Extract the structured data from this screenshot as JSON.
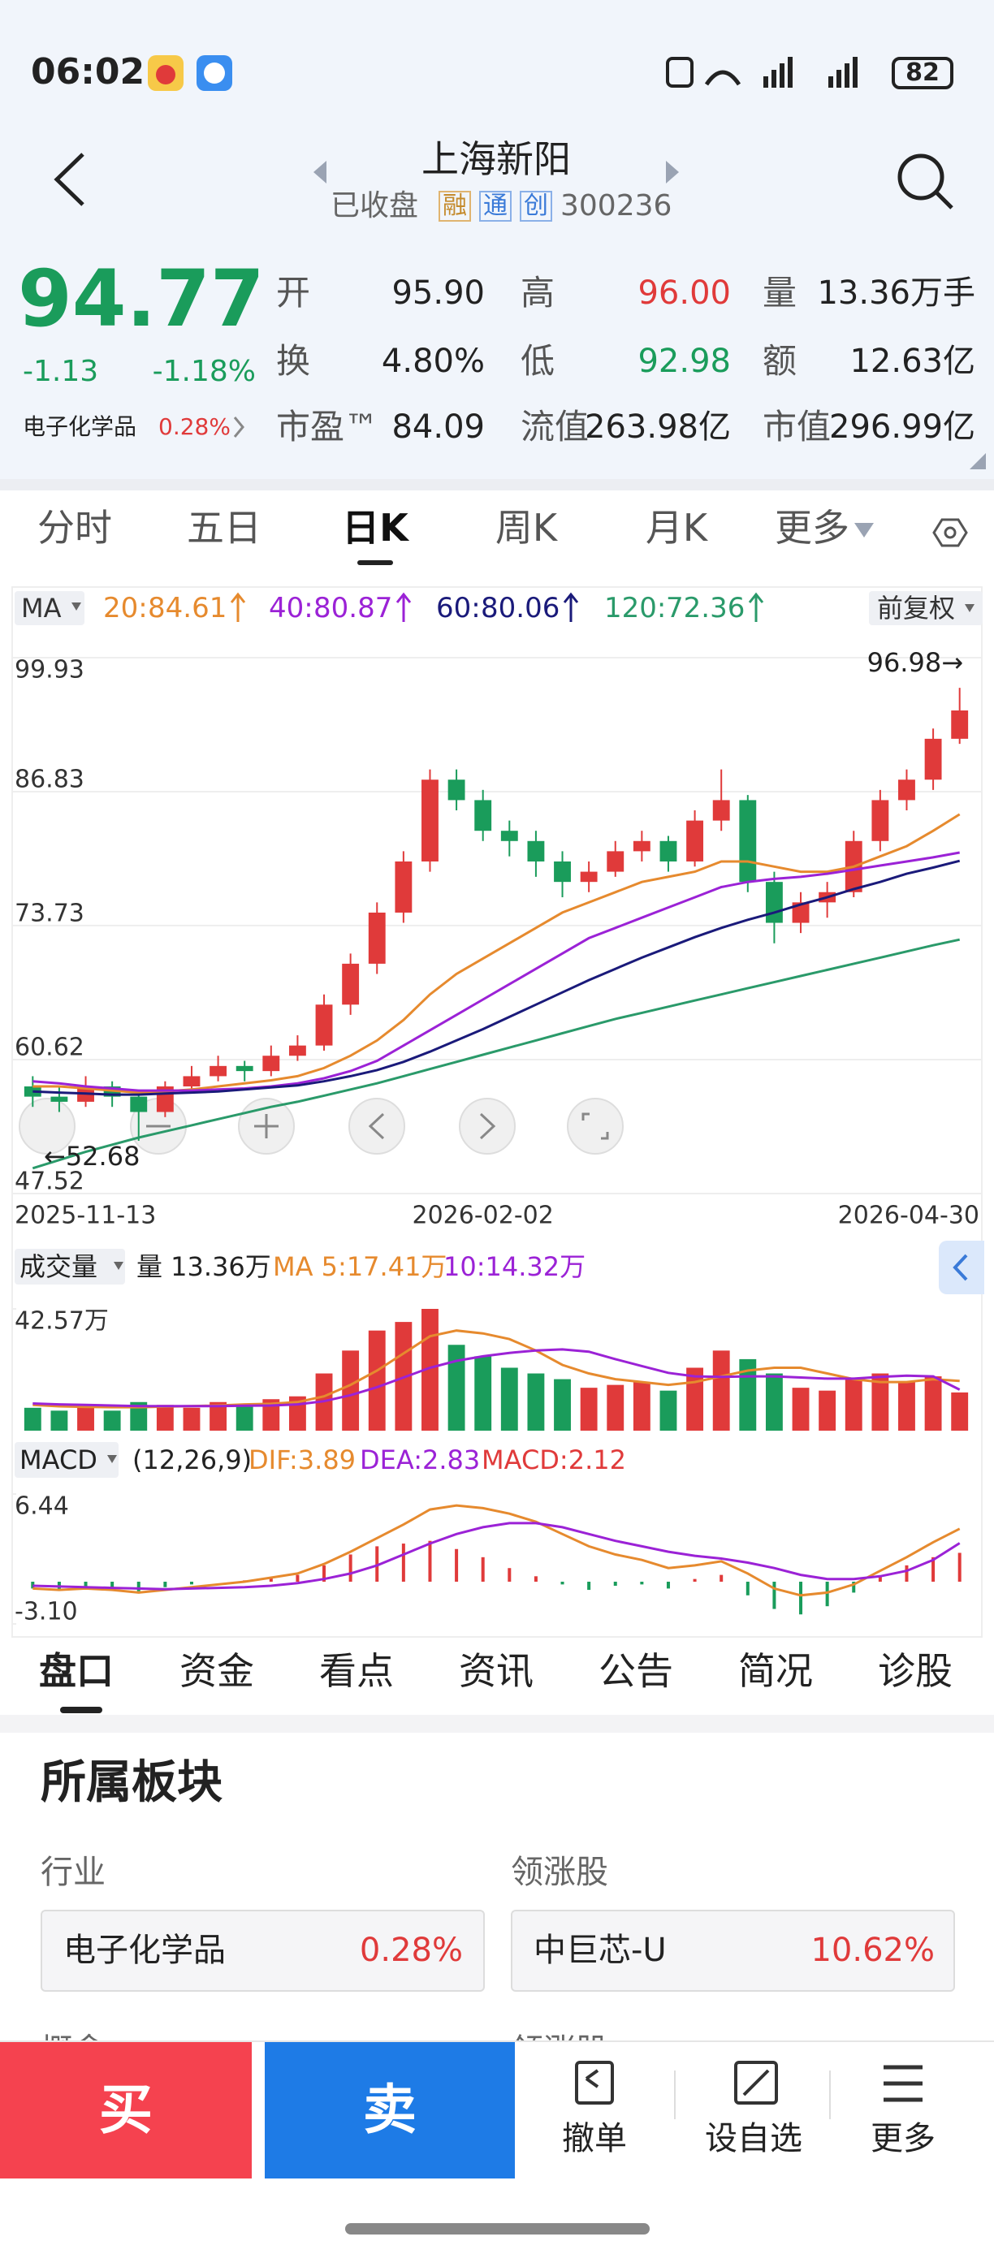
{
  "status": {
    "time": "06:02",
    "battery": "82"
  },
  "header": {
    "title": "上海新阳",
    "status": "已收盘",
    "tags": [
      "融",
      "通",
      "创"
    ],
    "code": "300236"
  },
  "quote": {
    "price": "94.77",
    "change": "-1.13",
    "change_pct": "-1.18%",
    "sector": "电子化学品",
    "sector_pct": "0.28%",
    "stats": [
      {
        "label": "开",
        "value": "95.90",
        "color": "#222"
      },
      {
        "label": "高",
        "value": "96.00",
        "color": "#e03a3a"
      },
      {
        "label": "量",
        "value": "13.36万手",
        "color": "#222"
      },
      {
        "label": "换",
        "value": "4.80%",
        "color": "#222"
      },
      {
        "label": "低",
        "value": "92.98",
        "color": "#1a9c5b"
      },
      {
        "label": "额",
        "value": "12.63亿",
        "color": "#222"
      },
      {
        "label": "市盈™",
        "value": "84.09",
        "color": "#222"
      },
      {
        "label": "流值",
        "value": "263.98亿",
        "color": "#222"
      },
      {
        "label": "市值",
        "value": "296.99亿",
        "color": "#222"
      }
    ]
  },
  "chart_tabs": [
    "分时",
    "五日",
    "日K",
    "周K",
    "月K",
    "更多"
  ],
  "indicator": "MA",
  "adjust": "前复权",
  "chart_data": [
    {
      "type": "candlestick",
      "up_color": "#e03a3a",
      "down_color": "#1a9c5b",
      "categories": [
        "2025-11-13",
        null,
        null,
        null,
        null,
        null,
        null,
        null,
        null,
        null,
        null,
        null,
        null,
        null,
        null,
        null,
        null,
        "2026-02-02",
        null,
        null,
        null,
        null,
        null,
        null,
        null,
        null,
        null,
        null,
        null,
        null,
        null,
        null,
        null,
        null,
        null,
        "2026-04-30"
      ],
      "candles": [
        [
          58,
          59,
          56,
          57
        ],
        [
          57,
          58,
          55.5,
          56.5
        ],
        [
          56.5,
          59,
          56,
          58
        ],
        [
          58,
          58.5,
          56,
          57
        ],
        [
          57,
          57.5,
          52.68,
          55.5
        ],
        [
          55.5,
          58.5,
          55,
          58
        ],
        [
          58,
          60,
          57.5,
          59
        ],
        [
          59,
          61,
          58.5,
          60
        ],
        [
          60,
          60.5,
          58.5,
          59.5
        ],
        [
          59.5,
          62,
          59,
          61
        ],
        [
          61,
          63,
          60.5,
          62
        ],
        [
          62,
          67,
          61.5,
          66
        ],
        [
          66,
          71,
          65,
          70
        ],
        [
          70,
          76,
          69,
          75
        ],
        [
          75,
          81,
          74,
          80
        ],
        [
          80,
          89,
          79,
          88
        ],
        [
          88,
          89,
          85,
          86
        ],
        [
          86,
          87,
          82,
          83
        ],
        [
          83,
          84,
          80.5,
          82
        ],
        [
          82,
          83,
          78.5,
          80
        ],
        [
          80,
          81,
          76.5,
          78
        ],
        [
          78,
          80,
          77,
          79
        ],
        [
          79,
          82,
          78.5,
          81
        ],
        [
          81,
          83,
          80,
          82
        ],
        [
          82,
          82.5,
          79,
          80
        ],
        [
          80,
          85,
          79.5,
          84
        ],
        [
          84,
          89,
          83,
          86
        ],
        [
          86,
          86.5,
          77,
          78
        ],
        [
          78,
          79,
          72,
          74
        ],
        [
          74,
          77,
          73,
          76
        ],
        [
          76,
          78,
          74.5,
          77
        ],
        [
          77,
          83,
          76.5,
          82
        ],
        [
          82,
          87,
          81,
          86
        ],
        [
          86,
          89,
          85,
          88
        ],
        [
          88,
          93,
          87,
          92
        ],
        [
          92,
          96.98,
          91.5,
          94.77
        ]
      ],
      "series": [
        {
          "name": "20:",
          "current": 84.61,
          "color": "#e68a2e",
          "values": [
            58,
            58,
            57.8,
            57.6,
            57.4,
            57.5,
            57.7,
            58,
            58.3,
            58.6,
            59,
            59.8,
            61,
            62.5,
            64.5,
            67,
            69,
            70.5,
            72,
            73.5,
            75,
            76,
            77,
            78,
            78.5,
            79,
            80,
            80,
            79.5,
            79,
            79,
            79.5,
            80.5,
            81.5,
            83,
            84.61
          ]
        },
        {
          "name": "40:",
          "current": 80.87,
          "color": "#9b22d6",
          "values": [
            58.5,
            58.3,
            58,
            57.8,
            57.6,
            57.6,
            57.6,
            57.7,
            57.8,
            58,
            58.3,
            58.8,
            59.5,
            60.5,
            62,
            63.5,
            65,
            66.5,
            68,
            69.5,
            71,
            72.5,
            73.5,
            74.5,
            75.5,
            76.5,
            77.5,
            78,
            78.3,
            78.5,
            78.8,
            79.2,
            79.6,
            80,
            80.4,
            80.87
          ]
        },
        {
          "name": "60:",
          "current": 80.06,
          "color": "#1a1a7a",
          "values": [
            57.5,
            57.4,
            57.3,
            57.2,
            57.2,
            57.3,
            57.4,
            57.5,
            57.7,
            57.9,
            58.1,
            58.5,
            59,
            59.6,
            60.4,
            61.4,
            62.5,
            63.6,
            64.8,
            66,
            67.2,
            68.4,
            69.5,
            70.6,
            71.6,
            72.6,
            73.5,
            74.3,
            75,
            75.8,
            76.5,
            77.3,
            78,
            78.8,
            79.4,
            80.06
          ]
        },
        {
          "name": "120:",
          "current": 72.36,
          "color": "#2a9a6a",
          "values": [
            50,
            50.8,
            51.6,
            52.3,
            53,
            53.6,
            54.2,
            54.8,
            55.4,
            56,
            56.5,
            57.1,
            57.7,
            58.3,
            59,
            59.7,
            60.4,
            61.1,
            61.8,
            62.5,
            63.2,
            63.9,
            64.6,
            65.2,
            65.8,
            66.4,
            67,
            67.6,
            68.2,
            68.8,
            69.4,
            70,
            70.6,
            71.2,
            71.8,
            72.36
          ]
        }
      ],
      "ylim": [
        47.52,
        99.93
      ],
      "yticks": [
        99.93,
        86.83,
        73.73,
        60.62,
        47.52
      ],
      "grid": true,
      "annotations": [
        "96.98→",
        "←52.68"
      ]
    },
    {
      "type": "bar",
      "title": "成交量",
      "legend": [
        "量 13.36万",
        "MA 5:17.41万",
        "10:14.32万"
      ],
      "values": [
        8,
        7,
        9,
        7,
        10,
        9,
        8,
        10,
        9,
        11,
        12,
        20,
        28,
        35,
        38,
        42.57,
        30,
        26,
        22,
        20,
        18,
        15,
        16,
        17,
        14,
        22,
        28,
        25,
        20,
        15,
        14,
        18,
        20,
        17,
        19,
        13.36
      ],
      "series": [
        {
          "name": "MA 5",
          "color": "#e68a2e",
          "values": [
            9,
            8.5,
            8.3,
            8.2,
            8.2,
            8.4,
            8.6,
            8.8,
            9.2,
            9.4,
            10,
            12,
            16,
            21,
            27,
            33,
            35,
            34,
            32,
            28,
            23,
            20,
            18,
            17,
            16,
            17,
            19,
            21,
            22,
            22,
            20,
            18,
            17,
            17,
            18,
            17.41
          ]
        },
        {
          "name": "10",
          "color": "#9b22d6",
          "values": [
            9.5,
            9.2,
            9,
            8.8,
            8.6,
            8.6,
            8.6,
            8.6,
            8.7,
            8.8,
            9.2,
            10.3,
            12.4,
            15.2,
            18.6,
            22,
            24.4,
            26,
            27.2,
            28,
            28.4,
            27.6,
            25,
            22.6,
            20.2,
            19,
            18.8,
            19,
            19,
            18.6,
            18.2,
            18.2,
            18.8,
            19.2,
            19,
            14.32
          ]
        }
      ],
      "ylim": [
        0,
        42.57
      ],
      "yticks": [
        {
          "value": 42.57,
          "label": "42.57万"
        }
      ]
    },
    {
      "type": "macd",
      "title": "MACD",
      "params": "(12,26,9)",
      "legend": [
        {
          "text": "DIF:3.89",
          "color": "#e68a2e"
        },
        {
          "text": "DEA:2.83",
          "color": "#9b22d6"
        },
        {
          "text": "MACD:2.12",
          "color": "#e03a3a"
        }
      ],
      "values": [
        -0.5,
        -0.6,
        -0.4,
        -0.5,
        -0.7,
        -0.4,
        -0.2,
        0,
        0.1,
        0.3,
        0.5,
        1.2,
        2,
        2.6,
        2.8,
        3,
        2.4,
        1.8,
        1,
        0.4,
        -0.2,
        -0.6,
        -0.3,
        -0.2,
        -0.5,
        0.2,
        0.5,
        -1,
        -2,
        -2.4,
        -1.8,
        -0.8,
        0.4,
        1.2,
        1.8,
        2.12
      ],
      "series": [
        {
          "name": "DIF",
          "color": "#e68a2e",
          "values": [
            -0.5,
            -0.6,
            -0.5,
            -0.6,
            -0.8,
            -0.6,
            -0.4,
            -0.2,
            0,
            0.3,
            0.6,
            1.3,
            2.2,
            3.2,
            4.2,
            5.3,
            5.6,
            5.4,
            5,
            4.4,
            3.5,
            2.6,
            2,
            1.6,
            1,
            1.2,
            1.5,
            0.6,
            -0.5,
            -1,
            -0.8,
            -0.2,
            0.8,
            1.8,
            2.9,
            3.89
          ]
        },
        {
          "name": "DEA",
          "color": "#9b22d6",
          "values": [
            -0.3,
            -0.35,
            -0.4,
            -0.45,
            -0.5,
            -0.55,
            -0.5,
            -0.45,
            -0.4,
            -0.3,
            -0.1,
            0.2,
            0.6,
            1.2,
            2,
            2.8,
            3.5,
            4,
            4.3,
            4.3,
            4,
            3.5,
            3,
            2.6,
            2.2,
            1.9,
            1.7,
            1.4,
            1,
            0.5,
            0.2,
            0.2,
            0.4,
            0.8,
            1.6,
            2.83
          ]
        }
      ],
      "ylim": [
        -3.1,
        6.44
      ],
      "yticks": [
        6.44,
        {
          "value": -3.1,
          "label": "-3.10"
        }
      ]
    }
  ],
  "info_tabs": [
    "盘口",
    "资金",
    "看点",
    "资讯",
    "公告",
    "简况",
    "诊股"
  ],
  "section": {
    "title": "所属板块",
    "columns": [
      {
        "heading": "行业",
        "name": "电子化学品",
        "pct": "0.28%"
      },
      {
        "heading": "领涨股",
        "name": "中巨芯-U",
        "pct": "10.62%"
      }
    ],
    "next_row": [
      "概念",
      "领涨股"
    ]
  },
  "bottom_bar": {
    "buy": "买",
    "sell": "卖",
    "actions": [
      "撤单",
      "设自选",
      "更多"
    ]
  }
}
